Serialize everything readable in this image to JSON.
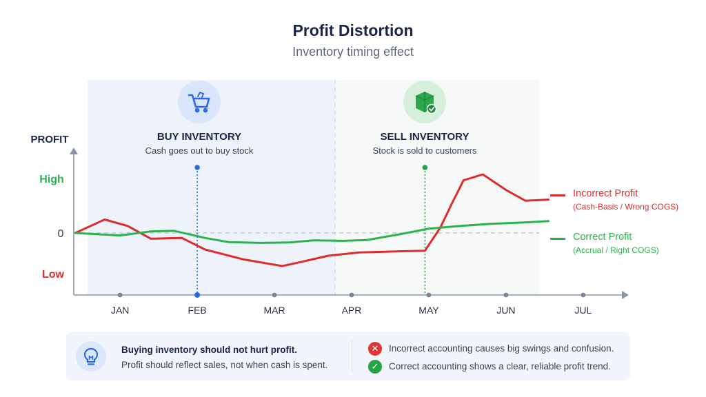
{
  "title": "Profit Distortion",
  "subtitle": "Inventory timing effect",
  "colors": {
    "incorrect": "#dc2c2c",
    "correct": "#2bb24c",
    "buy_marker": "#2d6be0",
    "sell_marker": "#22a447",
    "buy_region": "#eef3fb",
    "sell_region": "#f5f8f6"
  },
  "events": {
    "buy": {
      "title": "BUY INVENTORY",
      "subtitle": "Cash goes out to buy stock",
      "icon": "shopping-cart-icon"
    },
    "sell": {
      "title": "SELL INVENTORY",
      "subtitle": "Stock is sold to customers",
      "icon": "box-check-icon"
    }
  },
  "chart_data": {
    "type": "line",
    "ylabel": "PROFIT",
    "xlabel": "",
    "x_tick_labels": [
      "JAN",
      "FEB",
      "MAR",
      "APR",
      "MAY",
      "JUN",
      "JUL"
    ],
    "y_tick_labels": {
      "high": "High",
      "zero": "0",
      "low": "Low"
    },
    "x_domain": [
      0.4,
      7.6
    ],
    "ylim": [
      -1,
      1
    ],
    "zero_baseline": true,
    "grid": false,
    "legend_position": "right",
    "series": [
      {
        "name": "Incorrect Profit",
        "note": "(Cash-Basis / Wrong COGS)",
        "color_key": "incorrect",
        "x": [
          0.42,
          0.8,
          1.1,
          1.4,
          1.8,
          2.1,
          2.6,
          3.1,
          3.3,
          3.7,
          4.1,
          4.5,
          4.95,
          5.15,
          5.3,
          5.45,
          5.7,
          6.0,
          6.25,
          6.55
        ],
        "y": [
          0.0,
          0.25,
          0.13,
          -0.14,
          -0.12,
          -0.4,
          -0.64,
          -0.8,
          -0.72,
          -0.55,
          -0.47,
          -0.45,
          -0.43,
          0.1,
          0.55,
          0.98,
          1.09,
          0.8,
          0.6,
          0.62
        ]
      },
      {
        "name": "Correct Profit",
        "note": "(Accrual / Right COGS)",
        "color_key": "correct",
        "x": [
          0.42,
          0.7,
          1.0,
          1.4,
          1.7,
          2.1,
          2.4,
          2.8,
          3.2,
          3.5,
          3.9,
          4.2,
          4.6,
          5.0,
          5.4,
          5.8,
          6.3,
          6.55
        ],
        "y": [
          0.0,
          -0.03,
          -0.06,
          0.03,
          0.04,
          -0.12,
          -0.22,
          -0.24,
          -0.23,
          -0.18,
          -0.19,
          -0.17,
          -0.04,
          0.08,
          0.13,
          0.17,
          0.2,
          0.22
        ]
      }
    ],
    "events": [
      {
        "label": "BUY INVENTORY",
        "x": 2.0
      },
      {
        "label": "SELL INVENTORY",
        "x": 4.95
      }
    ]
  },
  "info": {
    "icon": "lightbulb-icon",
    "title": "Buying inventory should not hurt profit.",
    "text": "Profit should reflect sales, not when cash is spent.",
    "bad_icon": "x-circle-icon",
    "bad_glyph": "✕",
    "bad": "Incorrect accounting causes big swings and confusion.",
    "good_icon": "check-circle-icon",
    "good_glyph": "✓",
    "good": "Correct accounting shows a clear, reliable profit trend."
  }
}
